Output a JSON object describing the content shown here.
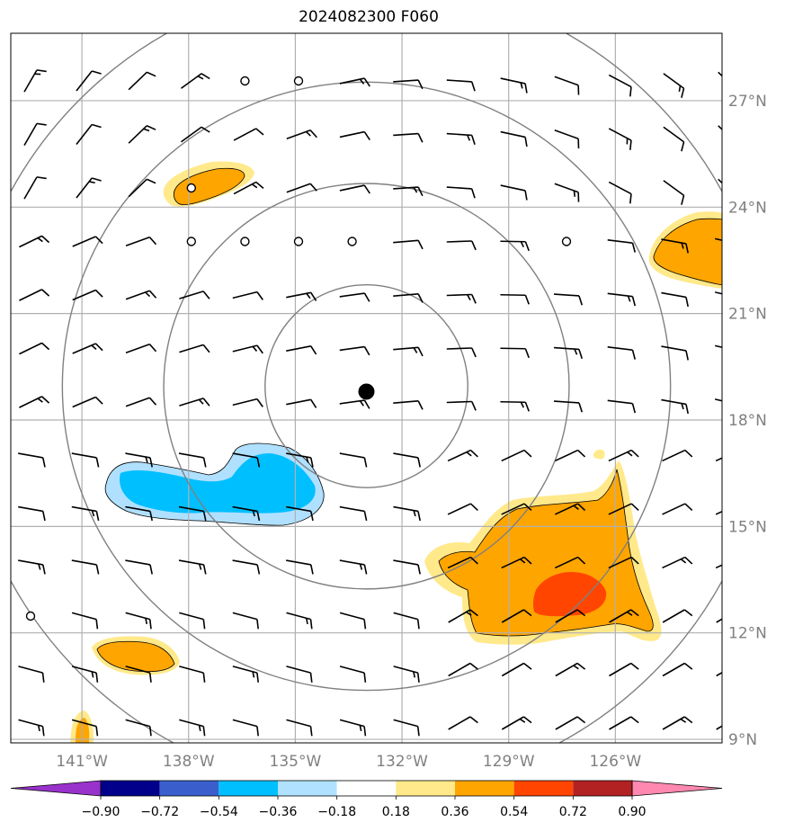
{
  "title": "2024082300 F060",
  "map": {
    "lon_range": [
      -143,
      -123
    ],
    "lat_range": [
      8.9,
      28.9
    ],
    "lon_ticks": [
      {
        "value": -141,
        "label": "141°W"
      },
      {
        "value": -138,
        "label": "138°W"
      },
      {
        "value": -135,
        "label": "135°W"
      },
      {
        "value": -132,
        "label": "132°W"
      },
      {
        "value": -129,
        "label": "129°W"
      },
      {
        "value": -126,
        "label": "126°W"
      }
    ],
    "lat_ticks": [
      {
        "value": 27,
        "label": "27°N"
      },
      {
        "value": 24,
        "label": "24°N"
      },
      {
        "value": 21,
        "label": "21°N"
      },
      {
        "value": 18,
        "label": "18°N"
      },
      {
        "value": 15,
        "label": "15°N"
      },
      {
        "value": 12,
        "label": "12°N"
      },
      {
        "value": 9,
        "label": "9°N"
      }
    ],
    "center": {
      "lon": -133,
      "lat": 18.8
    },
    "range_rings_deg": [
      2.85,
      5.7,
      8.55,
      11.4
    ],
    "colors": {
      "grid": "#b0b0b0",
      "ring": "#808080",
      "neg_light": "#b0e0ff",
      "neg": "#00bfff",
      "pos_light": "#ffe98a",
      "pos": "#ffa500",
      "pos_strong": "#ff4500"
    }
  },
  "colorbar": {
    "segments": [
      {
        "color": "#9932cc"
      },
      {
        "color": "#00008b"
      },
      {
        "color": "#3a5fcd"
      },
      {
        "color": "#00bfff"
      },
      {
        "color": "#b0e2ff"
      },
      {
        "color": "#ffffff"
      },
      {
        "color": "#ffe98a"
      },
      {
        "color": "#ffa500"
      },
      {
        "color": "#ff4500"
      },
      {
        "color": "#b22222"
      },
      {
        "color": "#ff88b0"
      }
    ],
    "labels": [
      "−0.90",
      "−0.72",
      "−0.54",
      "−0.36",
      "−0.18",
      "0.18",
      "0.36",
      "0.54",
      "0.72",
      "0.90"
    ]
  }
}
